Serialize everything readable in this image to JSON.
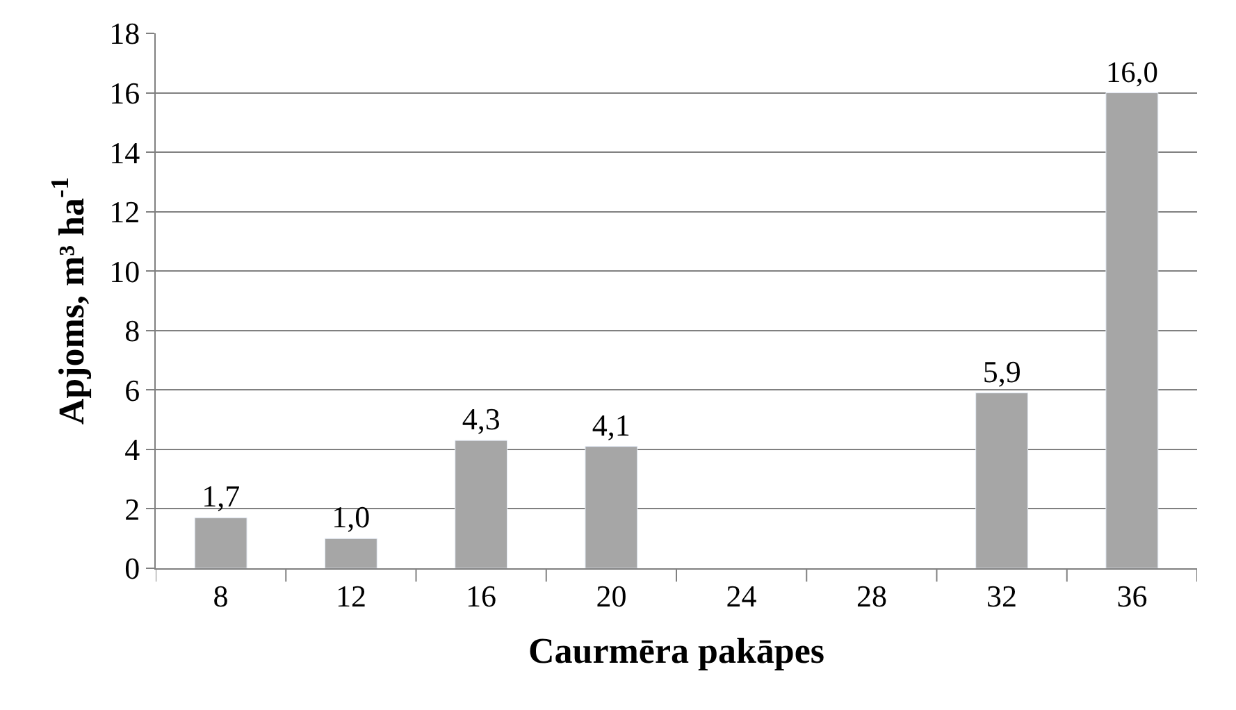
{
  "chart_data": {
    "type": "bar",
    "xlabel": "Caurmēra pakāpes",
    "ylabel": "Apjoms, m³ ha$^{-1}$",
    "categories": [
      "8",
      "12",
      "16",
      "20",
      "24",
      "28",
      "32",
      "36"
    ],
    "values": [
      1.7,
      1.0,
      4.3,
      4.1,
      null,
      null,
      5.9,
      16.0
    ],
    "value_labels": [
      "1,7",
      "1,0",
      "4,3",
      "4,1",
      null,
      null,
      "5,9",
      "16,0"
    ],
    "color": "#a6a6a6",
    "ylim": [
      0,
      18
    ],
    "yticks": [
      0,
      2,
      4,
      6,
      8,
      10,
      12,
      14,
      16,
      18
    ],
    "grid": "y",
    "legend": false
  }
}
